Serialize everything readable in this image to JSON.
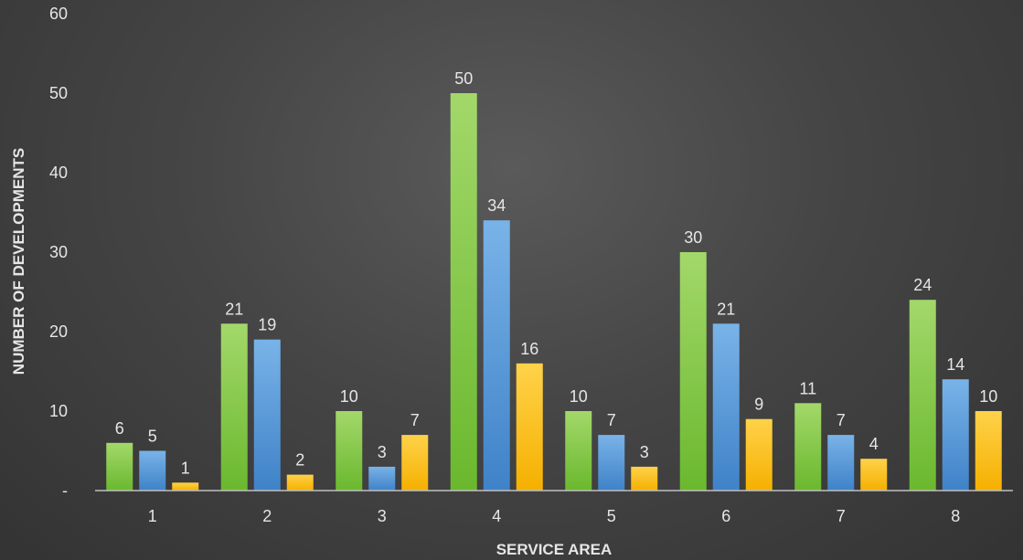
{
  "chart_data": {
    "type": "bar",
    "xlabel": "SERVICE AREA",
    "ylabel": "NUMBER OF DEVELOPMENTS",
    "categories": [
      "1",
      "2",
      "3",
      "4",
      "5",
      "6",
      "7",
      "8"
    ],
    "ylim": [
      0,
      60
    ],
    "yticks": [
      "-",
      "10",
      "20",
      "30",
      "40",
      "50",
      "60"
    ],
    "grid": false,
    "legend": "none",
    "series": [
      {
        "values": [
          6,
          21,
          10,
          50,
          10,
          30,
          11,
          24
        ],
        "color": "#8fce4f"
      },
      {
        "values": [
          5,
          19,
          3,
          34,
          7,
          21,
          7,
          14
        ],
        "color": "#5b9ad8"
      },
      {
        "values": [
          1,
          2,
          7,
          16,
          3,
          9,
          4,
          10
        ],
        "color": "#fcbc1c"
      }
    ]
  }
}
